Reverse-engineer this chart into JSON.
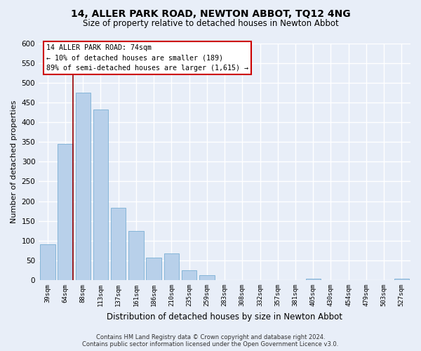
{
  "title": "14, ALLER PARK ROAD, NEWTON ABBOT, TQ12 4NG",
  "subtitle": "Size of property relative to detached houses in Newton Abbot",
  "xlabel": "Distribution of detached houses by size in Newton Abbot",
  "ylabel": "Number of detached properties",
  "bar_labels": [
    "39sqm",
    "64sqm",
    "88sqm",
    "113sqm",
    "137sqm",
    "161sqm",
    "186sqm",
    "210sqm",
    "235sqm",
    "259sqm",
    "283sqm",
    "308sqm",
    "332sqm",
    "357sqm",
    "381sqm",
    "405sqm",
    "430sqm",
    "454sqm",
    "479sqm",
    "503sqm",
    "527sqm"
  ],
  "bar_values": [
    90,
    345,
    475,
    432,
    183,
    125,
    57,
    68,
    25,
    12,
    0,
    0,
    0,
    0,
    0,
    3,
    0,
    0,
    0,
    0,
    3
  ],
  "bar_color": "#b8d0ea",
  "bar_edge_color": "#7aafd4",
  "ylim": [
    0,
    600
  ],
  "yticks": [
    0,
    50,
    100,
    150,
    200,
    250,
    300,
    350,
    400,
    450,
    500,
    550,
    600
  ],
  "red_line_x": 1.45,
  "annotation_title": "14 ALLER PARK ROAD: 74sqm",
  "annotation_line1": "← 10% of detached houses are smaller (189)",
  "annotation_line2": "89% of semi-detached houses are larger (1,615) →",
  "footnote1": "Contains HM Land Registry data © Crown copyright and database right 2024.",
  "footnote2": "Contains public sector information licensed under the Open Government Licence v3.0.",
  "background_color": "#e8eef8",
  "plot_bg_color": "#e8eef8",
  "grid_color": "#ffffff",
  "title_fontsize": 10,
  "subtitle_fontsize": 8.5
}
